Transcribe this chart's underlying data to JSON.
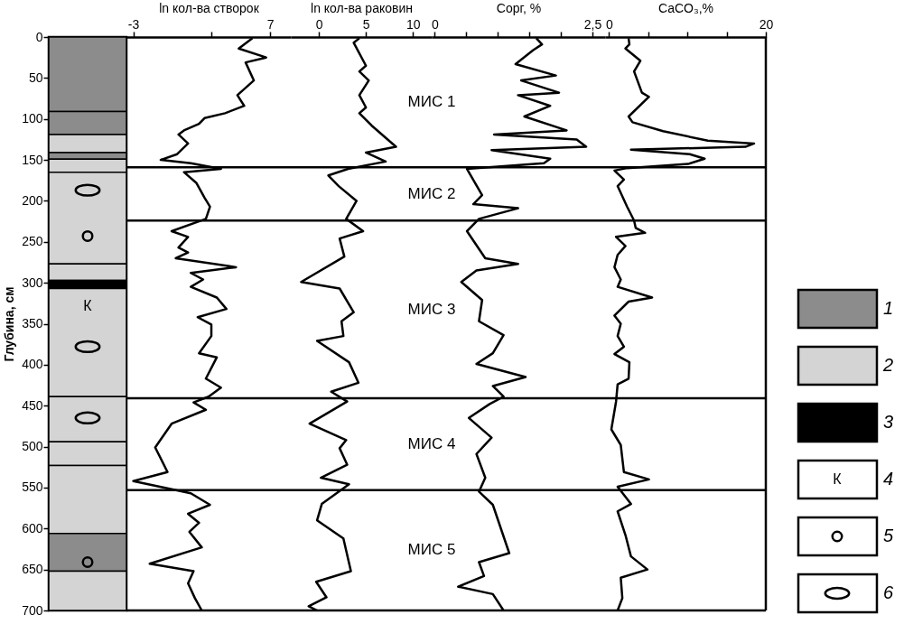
{
  "chart_data": [
    {
      "type": "bar",
      "stacked": true,
      "categories": [
        null
      ],
      "ylabel": "Глубина, см",
      "ylim": [
        700,
        0
      ],
      "yticks": [
        0,
        50,
        100,
        150,
        200,
        250,
        300,
        350,
        400,
        450,
        500,
        550,
        600,
        650,
        700
      ],
      "tick_labels": "y",
      "legend": "right",
      "series": [
        {
          "name": "1",
          "color": "#8c8c8c",
          "values": [
            91
          ]
        },
        {
          "color": "#8c8c8c",
          "values": [
            28
          ]
        },
        {
          "name": "2",
          "color": "#d4d4d4",
          "values": [
            22
          ]
        },
        {
          "color": "#8c8c8c",
          "values": [
            8
          ]
        },
        {
          "color": "#d4d4d4",
          "values": [
            16
          ]
        },
        {
          "color": "#d4d4d4",
          "values": [
            112
          ]
        },
        {
          "color": "#d4d4d4",
          "values": [
            20
          ]
        },
        {
          "name": "3",
          "color": "#000000",
          "values": [
            10
          ]
        },
        {
          "color": "#d4d4d4",
          "values": [
            132
          ]
        },
        {
          "color": "#d4d4d4",
          "values": [
            55
          ]
        },
        {
          "color": "#d4d4d4",
          "values": [
            29
          ]
        },
        {
          "color": "#d4d4d4",
          "values": [
            83
          ]
        },
        {
          "color": "#8c8c8c",
          "values": [
            46
          ]
        },
        {
          "color": "#d4d4d4",
          "values": [
            48
          ]
        }
      ],
      "annotations": [
        "К",
        "4",
        "5",
        "6"
      ]
    },
    {
      "type": "line",
      "orientation": "horizontal",
      "xlabel": "ln кол-ва створок",
      "xlim": [
        -3.5,
        8.5
      ],
      "xticks": [
        -3,
        {
          "value": 2.7,
          "label": null
        },
        7
      ],
      "ylim": [
        700,
        0
      ],
      "tick_labels": "x",
      "ref_lines": [
        {
          "axis": "y",
          "value": 159
        },
        {
          "axis": "y",
          "value": 224
        },
        {
          "axis": "y",
          "value": 441
        },
        {
          "axis": "y",
          "value": 553
        }
      ],
      "series": [
        {
          "color": "#000000",
          "x": [
            1.5,
            14,
            25,
            31,
            53,
            71,
            84,
            93,
            99,
            106,
            114,
            119,
            130,
            143,
            150,
            154,
            161,
            165,
            178,
            196,
            207,
            222,
            237,
            244,
            257,
            263,
            270,
            281,
            288,
            296,
            305,
            318,
            332,
            342,
            351,
            365,
            386,
            391,
            417,
            428,
            439,
            446,
            455,
            472,
            501,
            531,
            542,
            557,
            571,
            582,
            593,
            604,
            623,
            643,
            652,
            667,
            685,
            700
          ],
          "values": [
            5.7,
            4.7,
            6.7,
            5.2,
            5.8,
            4.6,
            5.1,
            3.7,
            2.2,
            1.8,
            0.7,
            0.3,
            1.0,
            0.2,
            -1.0,
            1.2,
            3.4,
            0.7,
            1.6,
            2.2,
            2.6,
            2.3,
            -0.2,
            1.0,
            0.3,
            1.0,
            0.1,
            4.5,
            1.2,
            2.1,
            1.2,
            3.1,
            3.8,
            1.7,
            2.7,
            2.7,
            1.8,
            3.1,
            2.3,
            3.4,
            2.5,
            1.4,
            2.3,
            -0.2,
            -1.4,
            -0.5,
            -3.0,
            1.2,
            2.6,
            1.0,
            1.8,
            1.1,
            2.0,
            -1.8,
            1.4,
            1.0,
            1.5,
            2.0
          ]
        }
      ]
    },
    {
      "type": "line",
      "orientation": "horizontal",
      "xlabel": "ln кол-ва раковин",
      "xlim": [
        -3,
        12
      ],
      "xticks": [
        0,
        5,
        10
      ],
      "ylim": [
        700,
        0
      ],
      "tick_labels": "x",
      "ref_lines": [
        {
          "axis": "y",
          "value": 159
        },
        {
          "axis": "y",
          "value": 224
        },
        {
          "axis": "y",
          "value": 441
        },
        {
          "axis": "y",
          "value": 553
        }
      ],
      "annotations": [
        "МИС 1",
        "МИС 2",
        "МИС 3",
        "МИС 4",
        "МИС 5"
      ],
      "series": [
        {
          "color": "#000000",
          "x": [
            1.5,
            7,
            35,
            42,
            53,
            71,
            86,
            93,
            108,
            134,
            141,
            152,
            161,
            169,
            182,
            200,
            222,
            237,
            246,
            268,
            299,
            307,
            336,
            347,
            365,
            371,
            397,
            422,
            433,
            445,
            472,
            492,
            502,
            522,
            538,
            546,
            570,
            590,
            612,
            652,
            665,
            684,
            695,
            700
          ],
          "values": [
            4.3,
            3.7,
            5.0,
            4.3,
            5.3,
            4.3,
            5.0,
            4.3,
            5.6,
            8.2,
            5.0,
            7.1,
            3.1,
            1.0,
            2.1,
            4.0,
            2.9,
            4.7,
            2.2,
            2.7,
            -1.9,
            2.2,
            3.7,
            2.4,
            2.6,
            -0.2,
            3.2,
            4.2,
            1.3,
            3.0,
            -1.0,
            2.9,
            2.2,
            3.0,
            0.2,
            3.2,
            0.3,
            -0.2,
            2.6,
            3.4,
            -0.3,
            0.8,
            -1.1,
            -0.2
          ]
        }
      ]
    },
    {
      "type": "line",
      "orientation": "horizontal",
      "xlabel": "Cорг, %",
      "xlim": [
        -0.05,
        2.7
      ],
      "xticks": [
        0,
        {
          "value": 0.5,
          "label": null
        },
        {
          "value": 1,
          "label": null
        },
        {
          "value": 1.5,
          "label": null
        },
        {
          "value": 2,
          "label": null
        },
        {
          "value": 2.5,
          "label": "2,5"
        }
      ],
      "ylim": [
        700,
        0
      ],
      "tick_labels": "x",
      "ref_lines": [
        {
          "axis": "y",
          "value": 159
        },
        {
          "axis": "y",
          "value": 224
        },
        {
          "axis": "y",
          "value": 441
        },
        {
          "axis": "y",
          "value": 553
        }
      ],
      "series": [
        {
          "color": "#000000",
          "x": [
            1.5,
            9,
            16,
            33,
            47,
            53,
            68,
            71,
            84,
            97,
            114,
            119,
            125,
            134,
            138,
            148.5,
            154,
            161,
            193,
            204,
            209,
            222,
            237,
            270,
            277,
            285,
            299,
            321,
            347,
            364,
            386,
            399,
            415,
            426,
            439,
            448,
            465,
            489,
            509,
            538,
            555,
            571,
            630,
            641,
            658,
            671,
            680,
            700
          ],
          "values": [
            1.61,
            1.7,
            1.56,
            1.28,
            1.92,
            1.37,
            1.97,
            1.32,
            1.83,
            1.42,
            2.09,
            0.94,
            2.25,
            2.4,
            0.9,
            1.83,
            1.73,
            0.51,
            0.75,
            0.61,
            1.32,
            0.7,
            0.51,
            0.8,
            1.32,
            0.66,
            0.42,
            0.75,
            0.7,
            1.09,
            0.92,
            0.66,
            1.44,
            0.92,
            1.09,
            0.87,
            0.54,
            0.9,
            0.66,
            0.8,
            0.7,
            0.92,
            1.18,
            0.7,
            0.78,
            0.37,
            0.92,
            1.09
          ]
        }
      ]
    },
    {
      "type": "line",
      "orientation": "horizontal",
      "xlabel": "CaCO₃,%",
      "xlim": [
        -0.5,
        20
      ],
      "xticks": [
        0,
        {
          "value": 5,
          "label": null
        },
        {
          "value": 10,
          "label": null
        },
        {
          "value": 15,
          "label": null
        },
        20
      ],
      "ylim": [
        700,
        0
      ],
      "tick_labels": "x",
      "ref_lines": [
        {
          "axis": "y",
          "value": 159
        },
        {
          "axis": "y",
          "value": 224
        },
        {
          "axis": "y",
          "value": 441
        },
        {
          "axis": "y",
          "value": 553
        }
      ],
      "series": [
        {
          "color": "#000000",
          "x": [
            1.5,
            9,
            14,
            29,
            42,
            68,
            73,
            97,
            104,
            115,
            126.5,
            130,
            134,
            137.5,
            143,
            148.5,
            155,
            160,
            163,
            174,
            182,
            207,
            224,
            233,
            239,
            244,
            255,
            266,
            281,
            296,
            305,
            318,
            323,
            340,
            350,
            365,
            378,
            387,
            397,
            417,
            424,
            445,
            479,
            498,
            531,
            540,
            549,
            570,
            579,
            608,
            634,
            650,
            660,
            685,
            700
          ],
          "values": [
            2.5,
            2.6,
            2.1,
            4.0,
            3.2,
            4.2,
            5.1,
            2.5,
            3.0,
            6.9,
            12.6,
            18.5,
            17.4,
            2.8,
            10.3,
            12.2,
            10.1,
            2.3,
            0.7,
            1.9,
            1.1,
            2.3,
            3.2,
            3.4,
            4.6,
            0.9,
            2.1,
            1.1,
            0.7,
            1.5,
            1.1,
            5.5,
            2.5,
            0.7,
            1.5,
            1.1,
            1.9,
            0.7,
            2.6,
            2.5,
            1.1,
            0.9,
            0.3,
            1.5,
            1.9,
            5.1,
            1.1,
            2.8,
            1.1,
            2.1,
            2.8,
            4.9,
            1.5,
            1.7,
            1.1
          ]
        }
      ]
    }
  ]
}
